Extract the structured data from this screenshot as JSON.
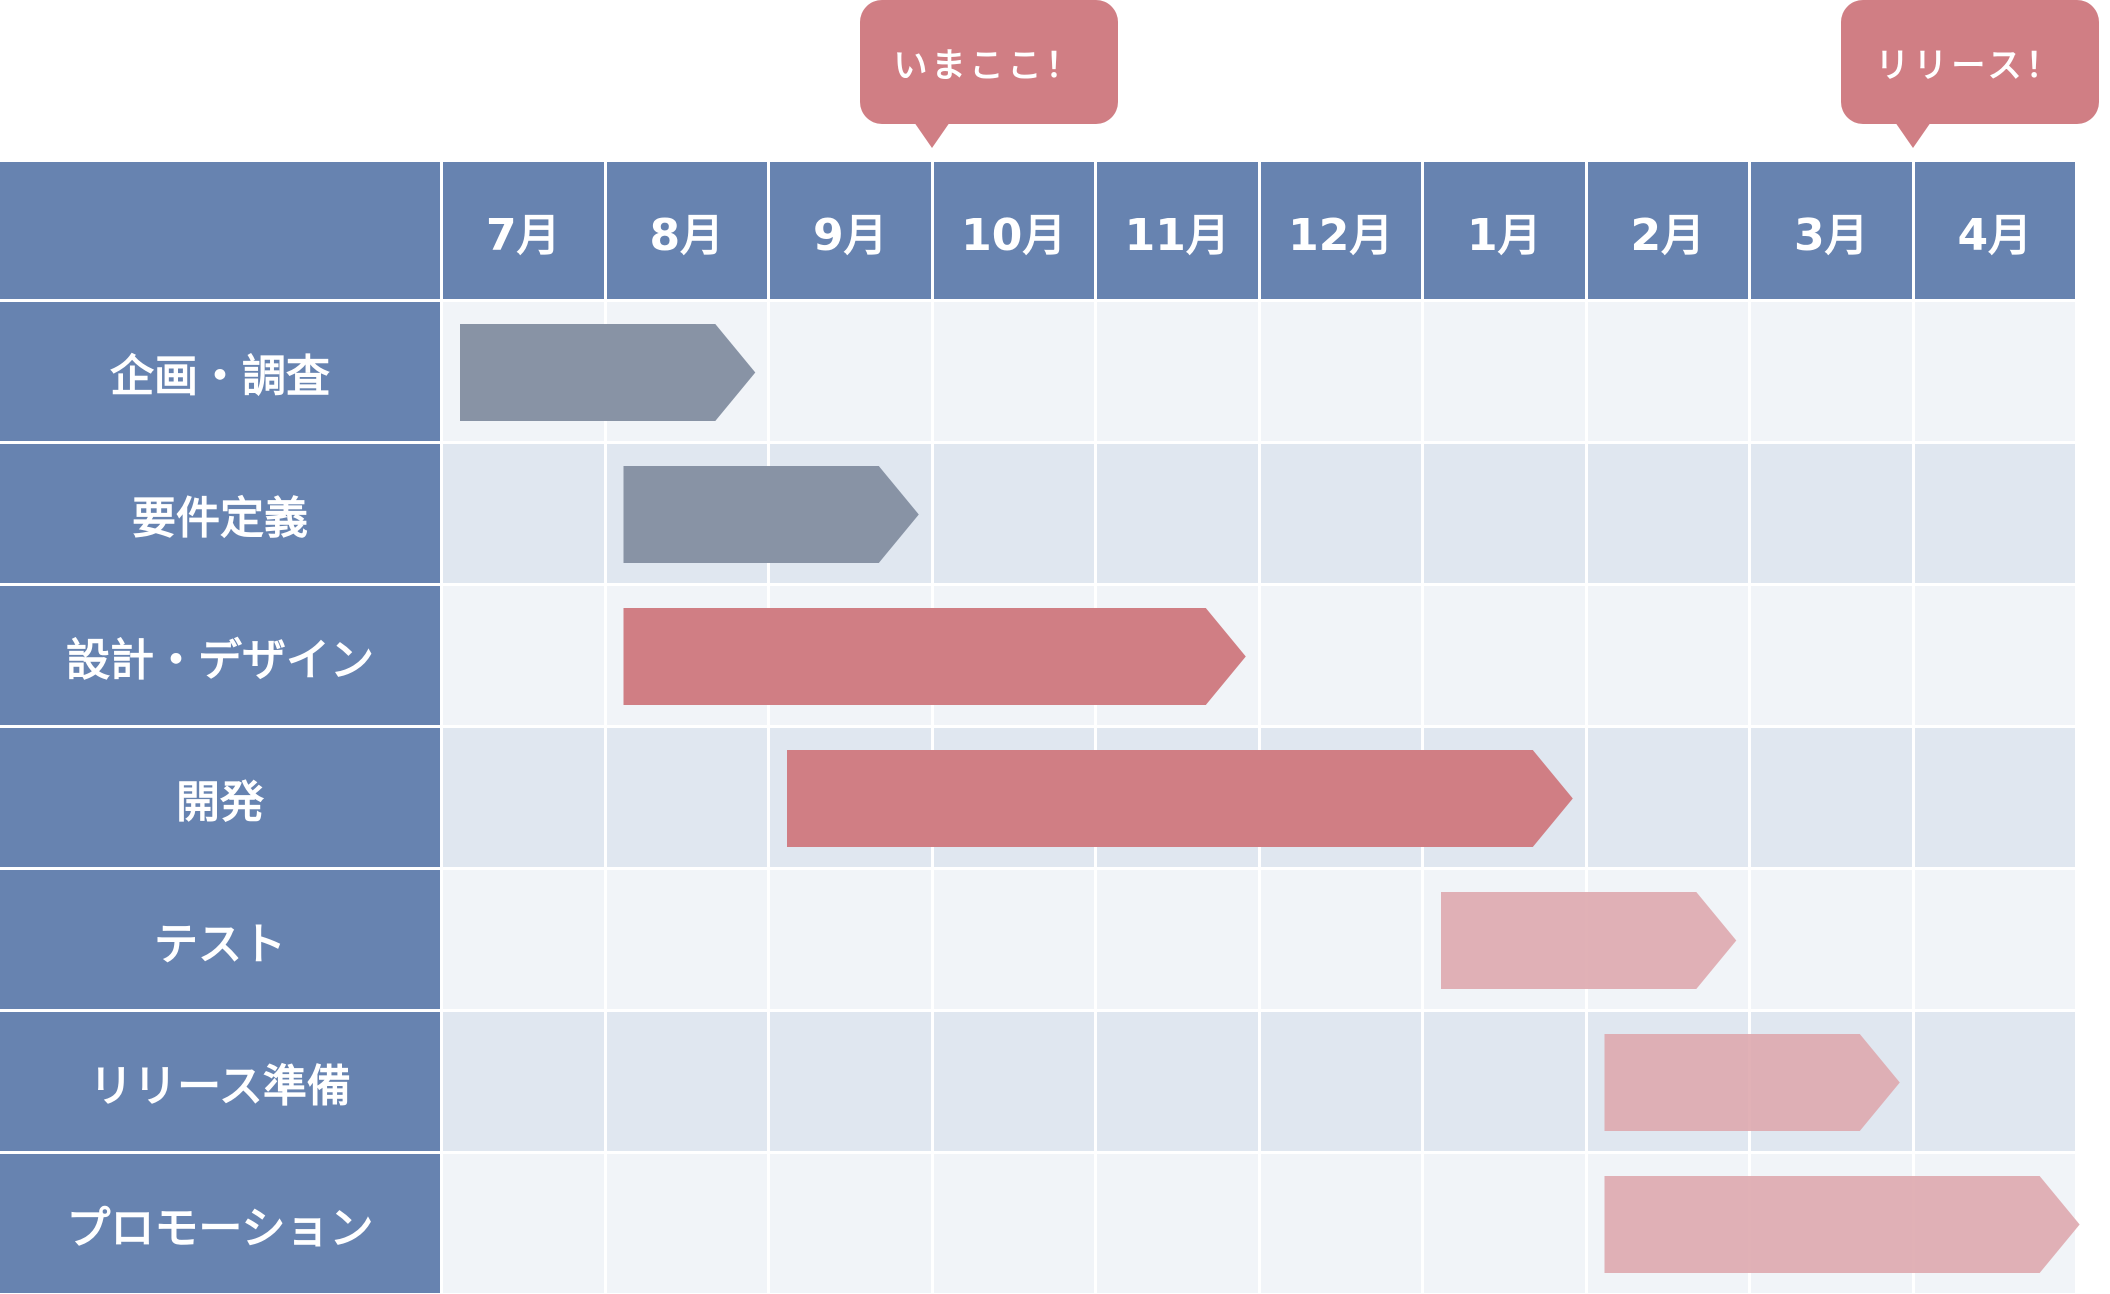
{
  "colors": {
    "header": "#6783b0",
    "row_light": "#f1f4f8",
    "row_dark": "#e0e7f0",
    "gray_bar": "#8893a5",
    "red_bar": "#d07e84",
    "pink_bar": "#dea9ae",
    "callout": "#d07e84"
  },
  "months": [
    "7月",
    "8月",
    "9月",
    "10月",
    "11月",
    "12月",
    "1月",
    "2月",
    "3月",
    "4月"
  ],
  "tasks": [
    {
      "label": "企画・調査",
      "start": 0,
      "end": 1.8,
      "color": "gray"
    },
    {
      "label": "要件定義",
      "start": 1,
      "end": 2.8,
      "color": "gray"
    },
    {
      "label": "設計・デザイン",
      "start": 1,
      "end": 4.8,
      "color": "red"
    },
    {
      "label": "開発",
      "start": 2,
      "end": 6.8,
      "color": "red"
    },
    {
      "label": "テスト",
      "start": 6,
      "end": 7.8,
      "color": "pink"
    },
    {
      "label": "リリース準備",
      "start": 7,
      "end": 8.8,
      "color": "pink"
    },
    {
      "label": "プロモーション",
      "start": 7,
      "end": 9.9,
      "color": "pink"
    }
  ],
  "callouts": [
    {
      "label": "いまここ！",
      "month_index": 3
    },
    {
      "label": "リリース！",
      "month_index": 9
    }
  ]
}
